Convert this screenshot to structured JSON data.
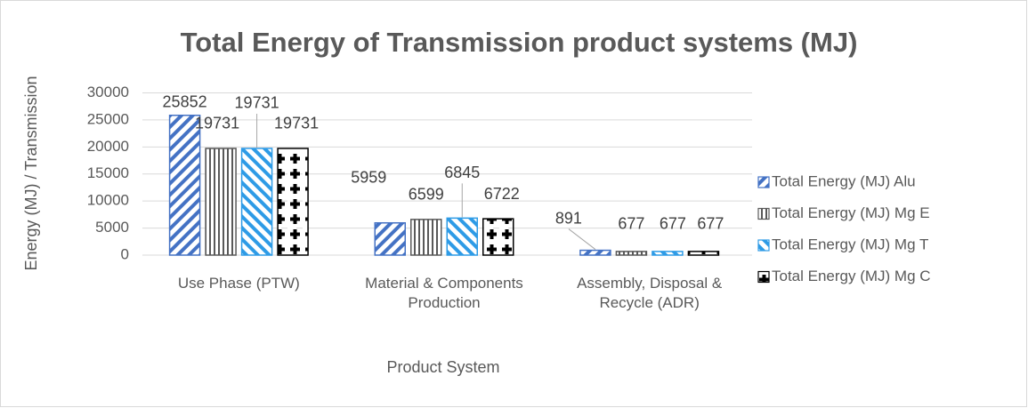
{
  "chart_data": {
    "type": "bar",
    "title": "Total Energy of Transmission product systems (MJ)",
    "x_label": "Product System",
    "y_label": "Energy (MJ) / Transmission",
    "categories": [
      "Use Phase (PTW)",
      "Material & Components Production",
      "Assembly, Disposal & Recycle (ADR)"
    ],
    "series": [
      {
        "name": "Total Energy (MJ) Alu",
        "color": "#4472c4",
        "values": [
          25852,
          5959,
          891
        ]
      },
      {
        "name": "Total Energy (MJ) Mg E",
        "color": "#595959",
        "values": [
          19731,
          6599,
          677
        ]
      },
      {
        "name": "Total Energy (MJ) Mg T",
        "color": "#2e9be6",
        "values": [
          19731,
          6845,
          677
        ]
      },
      {
        "name": "Total Energy (MJ) Mg C",
        "color": "#000000",
        "values": [
          19731,
          6722,
          677
        ]
      }
    ],
    "ylim": [
      0,
      30000
    ],
    "yticks": [
      0,
      5000,
      10000,
      15000,
      20000,
      25000,
      30000
    ],
    "grid": true,
    "legend": "right"
  }
}
